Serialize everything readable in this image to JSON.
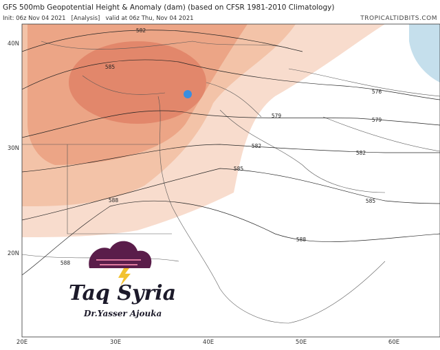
{
  "header": {
    "title": "GFS 500mb Geopotential Height & Anomaly (dam) (based on CFSR 1981-2010 Climatology)",
    "init": "Init: 06z Nov 04 2021   [Analysis]   valid at 06z Thu, Nov 04 2021",
    "site": "TROPICALTIDBITS.COM"
  },
  "axes": {
    "lon_labels": [
      "20E",
      "30E",
      "40E",
      "50E",
      "60E"
    ],
    "lat_labels": [
      "40N",
      "30N",
      "20N"
    ]
  },
  "contour_labels": [
    582,
    585,
    576,
    579,
    579,
    582,
    582,
    585,
    585,
    588,
    588,
    588
  ],
  "logo": {
    "name": "Taq Syria",
    "author": "Dr.Yasser Ajouka"
  }
}
